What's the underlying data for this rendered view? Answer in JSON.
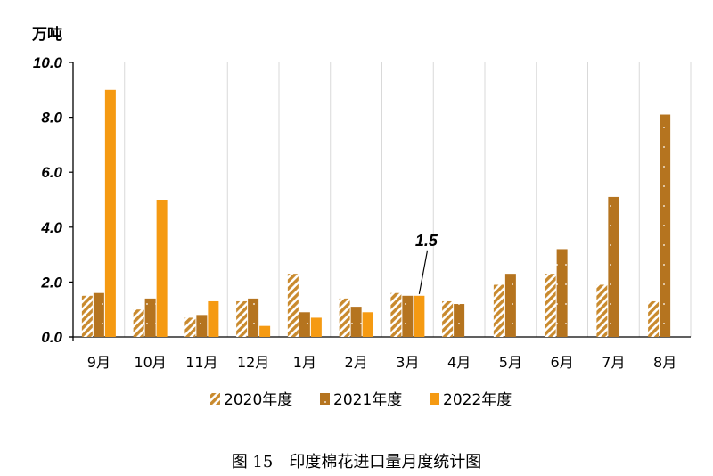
{
  "chart_data": {
    "type": "bar",
    "y_unit": "万吨",
    "ylim": [
      0,
      10
    ],
    "yticks": [
      "0.0",
      "2.0",
      "4.0",
      "6.0",
      "8.0",
      "10.0"
    ],
    "grid": "vertical",
    "categories": [
      "9月",
      "10月",
      "11月",
      "12月",
      "1月",
      "2月",
      "3月",
      "4月",
      "5月",
      "6月",
      "7月",
      "8月"
    ],
    "series": [
      {
        "name": "2020年度",
        "color": "#C98A2E",
        "pattern": "hatched",
        "values": [
          1.5,
          1.0,
          0.7,
          1.3,
          2.3,
          1.4,
          1.6,
          1.3,
          1.9,
          2.3,
          1.9,
          1.3
        ]
      },
      {
        "name": "2021年度",
        "color": "#B5741F",
        "pattern": "solid",
        "values": [
          1.6,
          1.4,
          0.8,
          1.4,
          0.9,
          1.1,
          1.5,
          1.2,
          2.3,
          3.2,
          5.1,
          8.1
        ]
      },
      {
        "name": "2022年度",
        "color": "#F59A12",
        "pattern": "solid",
        "values": [
          9.0,
          5.0,
          1.3,
          0.4,
          0.7,
          0.9,
          1.5,
          null,
          null,
          null,
          null,
          null
        ]
      }
    ],
    "annotation": {
      "text": "1.5",
      "series": "2022年度",
      "category": "3月"
    },
    "legend_position": "bottom"
  },
  "caption": "图 15　印度棉花进口量月度统计图"
}
